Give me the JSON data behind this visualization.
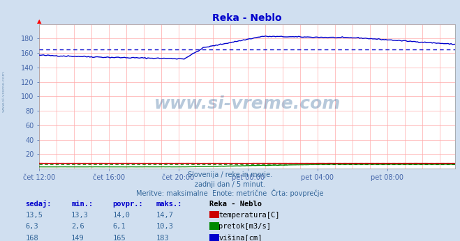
{
  "title": "Reka - Neblo",
  "bg_color": "#d0dff0",
  "plot_bg_color": "#ffffff",
  "grid_color": "#ffaaaa",
  "title_color": "#0000cc",
  "axis_label_color": "#4466aa",
  "text_color": "#336699",
  "xlim": [
    0,
    287
  ],
  "ylim": [
    0,
    200
  ],
  "ytick_vals": [
    20,
    40,
    60,
    80,
    100,
    120,
    140,
    160,
    180
  ],
  "xtick_labels": [
    "čet 12:00",
    "čet 16:00",
    "čet 20:00",
    "pet 00:00",
    "pet 04:00",
    "pet 08:00"
  ],
  "xtick_positions": [
    0,
    48,
    96,
    144,
    192,
    240
  ],
  "subtitle1": "Slovenija / reke in morje.",
  "subtitle2": "zadnji dan / 5 minut.",
  "subtitle3": "Meritve: maksimalne  Enote: metrične  Črta: povprečje",
  "legend_title": "Reka - Neblo",
  "legend_items": [
    {
      "label": "temperatura[C]",
      "color": "#cc0000"
    },
    {
      "label": "pretok[m3/s]",
      "color": "#008800"
    },
    {
      "label": "višina[cm]",
      "color": "#0000cc"
    }
  ],
  "table_headers": [
    "sedaj:",
    "min.:",
    "povpr.:",
    "maks.:"
  ],
  "table_rows": [
    [
      "13,5",
      "13,3",
      "14,0",
      "14,7"
    ],
    [
      "6,3",
      "2,6",
      "6,1",
      "10,3"
    ],
    [
      "168",
      "149",
      "165",
      "183"
    ]
  ],
  "watermark": "www.si-vreme.com",
  "visina_avg": 165,
  "pretok_avg": 6.1,
  "temp_avg": 14.0,
  "temp_max": 14.7,
  "pretok_max": 10.3,
  "visina_max": 183,
  "n_points": 288
}
